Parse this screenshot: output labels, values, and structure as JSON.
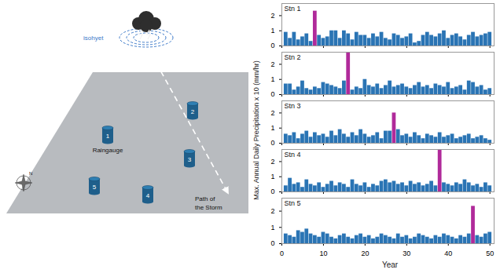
{
  "diagram": {
    "isohyet": "isohyet",
    "raingauge": "Raingauge",
    "north": "N",
    "storm_path": [
      "Path of",
      "the Storm"
    ],
    "gauges": [
      "1",
      "2",
      "3",
      "4",
      "5"
    ]
  },
  "axis_labels": {
    "y": "Max. Annual Daily Precipitation x 10 (mm/hr)",
    "x": "Year"
  },
  "chart_data": [
    {
      "type": "bar",
      "title": "Stn 1",
      "tick_labels": "y",
      "x": [
        1,
        2,
        3,
        4,
        5,
        6,
        7,
        8,
        9,
        10,
        11,
        12,
        13,
        14,
        15,
        16,
        17,
        18,
        19,
        20,
        21,
        22,
        23,
        24,
        25,
        26,
        27,
        28,
        29,
        30,
        31,
        32,
        33,
        34,
        35,
        36,
        37,
        38,
        39,
        40,
        41,
        42,
        43,
        44,
        45,
        46,
        47,
        48,
        49,
        50
      ],
      "values": [
        0.9,
        0.5,
        0.9,
        0.4,
        0.6,
        0.8,
        0.3,
        2.3,
        0.7,
        0.5,
        0.6,
        1.0,
        1.0,
        0.5,
        1.0,
        0.8,
        0.4,
        0.9,
        0.7,
        0.7,
        0.5,
        0.8,
        0.6,
        0.9,
        0.5,
        0.4,
        0.8,
        0.7,
        0.5,
        0.6,
        0.8,
        0.2,
        0.3,
        0.7,
        0.9,
        0.7,
        0.6,
        0.8,
        1.0,
        0.5,
        0.7,
        0.8,
        0.6,
        0.4,
        0.7,
        0.9,
        0.6,
        0.7,
        0.8,
        0.9
      ],
      "colors": [
        "#2a74b4",
        "#2a74b4",
        "#2a74b4",
        "#2a74b4",
        "#2a74b4",
        "#2a74b4",
        "#2a74b4",
        "#b02a9a",
        "#2a74b4",
        "#2a74b4",
        "#2a74b4",
        "#2a74b4",
        "#2a74b4",
        "#2a74b4",
        "#2a74b4",
        "#2a74b4",
        "#2a74b4",
        "#2a74b4",
        "#2a74b4",
        "#2a74b4",
        "#2a74b4",
        "#2a74b4",
        "#2a74b4",
        "#2a74b4",
        "#2a74b4",
        "#2a74b4",
        "#2a74b4",
        "#2a74b4",
        "#2a74b4",
        "#2a74b4",
        "#2a74b4",
        "#2a74b4",
        "#2a74b4",
        "#2a74b4",
        "#2a74b4",
        "#2a74b4",
        "#2a74b4",
        "#2a74b4",
        "#2a74b4",
        "#2a74b4",
        "#2a74b4",
        "#2a74b4",
        "#2a74b4",
        "#2a74b4",
        "#2a74b4",
        "#2a74b4",
        "#2a74b4",
        "#2a74b4",
        "#2a74b4",
        "#2a74b4"
      ],
      "xlim": [
        0,
        51
      ],
      "xticks": [
        0,
        10,
        20,
        30,
        40,
        50
      ],
      "ylim": [
        0,
        2.8
      ],
      "yticks": [
        0,
        1,
        2
      ]
    },
    {
      "type": "bar",
      "title": "Stn 2",
      "tick_labels": "y",
      "x": [
        1,
        2,
        3,
        4,
        5,
        6,
        7,
        8,
        9,
        10,
        11,
        12,
        13,
        14,
        15,
        16,
        17,
        18,
        19,
        20,
        21,
        22,
        23,
        24,
        25,
        26,
        27,
        28,
        29,
        30,
        31,
        32,
        33,
        34,
        35,
        36,
        37,
        38,
        39,
        40,
        41,
        42,
        43,
        44,
        45,
        46,
        47,
        48,
        49,
        50
      ],
      "values": [
        0.7,
        0.7,
        0.3,
        0.5,
        0.9,
        0.4,
        0.3,
        0.5,
        0.4,
        0.8,
        0.7,
        0.6,
        0.5,
        0.4,
        0.9,
        2.8,
        0.3,
        0.5,
        0.4,
        1.0,
        0.6,
        0.5,
        0.7,
        0.4,
        0.6,
        0.9,
        0.5,
        0.6,
        0.7,
        0.5,
        0.4,
        0.6,
        0.8,
        0.5,
        0.6,
        0.4,
        0.7,
        0.6,
        0.5,
        0.8,
        0.4,
        0.5,
        0.6,
        0.3,
        0.9,
        0.8,
        0.5,
        0.6,
        0.3,
        0.4
      ],
      "colors": [
        "#2a74b4",
        "#2a74b4",
        "#2a74b4",
        "#2a74b4",
        "#2a74b4",
        "#2a74b4",
        "#2a74b4",
        "#2a74b4",
        "#2a74b4",
        "#2a74b4",
        "#2a74b4",
        "#2a74b4",
        "#2a74b4",
        "#2a74b4",
        "#2a74b4",
        "#b02a9a",
        "#2a74b4",
        "#2a74b4",
        "#2a74b4",
        "#2a74b4",
        "#2a74b4",
        "#2a74b4",
        "#2a74b4",
        "#2a74b4",
        "#2a74b4",
        "#2a74b4",
        "#2a74b4",
        "#2a74b4",
        "#2a74b4",
        "#2a74b4",
        "#2a74b4",
        "#2a74b4",
        "#2a74b4",
        "#2a74b4",
        "#2a74b4",
        "#2a74b4",
        "#2a74b4",
        "#2a74b4",
        "#2a74b4",
        "#2a74b4",
        "#2a74b4",
        "#2a74b4",
        "#2a74b4",
        "#2a74b4",
        "#2a74b4",
        "#2a74b4",
        "#2a74b4",
        "#2a74b4",
        "#2a74b4",
        "#2a74b4"
      ],
      "xlim": [
        0,
        51
      ],
      "xticks": [
        0,
        10,
        20,
        30,
        40,
        50
      ],
      "ylim": [
        0,
        2.8
      ],
      "yticks": [
        0,
        1,
        2
      ]
    },
    {
      "type": "bar",
      "title": "Stn 3",
      "tick_labels": "y",
      "x": [
        1,
        2,
        3,
        4,
        5,
        6,
        7,
        8,
        9,
        10,
        11,
        12,
        13,
        14,
        15,
        16,
        17,
        18,
        19,
        20,
        21,
        22,
        23,
        24,
        25,
        26,
        27,
        28,
        29,
        30,
        31,
        32,
        33,
        34,
        35,
        36,
        37,
        38,
        39,
        40,
        41,
        42,
        43,
        44,
        45,
        46,
        47,
        48,
        49,
        50
      ],
      "values": [
        0.6,
        0.5,
        0.7,
        0.3,
        0.6,
        0.8,
        0.4,
        0.7,
        0.5,
        0.6,
        0.4,
        0.8,
        0.5,
        0.9,
        0.6,
        0.4,
        0.7,
        0.5,
        0.9,
        0.6,
        0.4,
        0.5,
        0.7,
        0.3,
        0.8,
        0.8,
        2.0,
        0.9,
        0.5,
        0.6,
        0.4,
        0.7,
        0.5,
        0.3,
        0.6,
        0.5,
        0.4,
        0.7,
        0.4,
        0.5,
        0.6,
        0.3,
        0.4,
        0.5,
        0.6,
        0.3,
        0.4,
        0.5,
        0.3,
        0.2
      ],
      "colors": [
        "#2a74b4",
        "#2a74b4",
        "#2a74b4",
        "#2a74b4",
        "#2a74b4",
        "#2a74b4",
        "#2a74b4",
        "#2a74b4",
        "#2a74b4",
        "#2a74b4",
        "#2a74b4",
        "#2a74b4",
        "#2a74b4",
        "#2a74b4",
        "#2a74b4",
        "#2a74b4",
        "#2a74b4",
        "#2a74b4",
        "#2a74b4",
        "#2a74b4",
        "#2a74b4",
        "#2a74b4",
        "#2a74b4",
        "#2a74b4",
        "#2a74b4",
        "#2a74b4",
        "#b02a9a",
        "#2a74b4",
        "#2a74b4",
        "#2a74b4",
        "#2a74b4",
        "#2a74b4",
        "#2a74b4",
        "#2a74b4",
        "#2a74b4",
        "#2a74b4",
        "#2a74b4",
        "#2a74b4",
        "#2a74b4",
        "#2a74b4",
        "#2a74b4",
        "#2a74b4",
        "#2a74b4",
        "#2a74b4",
        "#2a74b4",
        "#2a74b4",
        "#2a74b4",
        "#2a74b4",
        "#2a74b4",
        "#2a74b4"
      ],
      "xlim": [
        0,
        51
      ],
      "xticks": [
        0,
        10,
        20,
        30,
        40,
        50
      ],
      "ylim": [
        0,
        2.8
      ],
      "yticks": [
        0,
        1,
        2
      ]
    },
    {
      "type": "bar",
      "title": "Stn 4",
      "tick_labels": "y",
      "x": [
        1,
        2,
        3,
        4,
        5,
        6,
        7,
        8,
        9,
        10,
        11,
        12,
        13,
        14,
        15,
        16,
        17,
        18,
        19,
        20,
        21,
        22,
        23,
        24,
        25,
        26,
        27,
        28,
        29,
        30,
        31,
        32,
        33,
        34,
        35,
        36,
        37,
        38,
        39,
        40,
        41,
        42,
        43,
        44,
        45,
        46,
        47,
        48,
        49,
        50
      ],
      "values": [
        0.4,
        0.9,
        0.5,
        0.6,
        0.3,
        0.8,
        0.5,
        0.4,
        0.6,
        0.3,
        0.5,
        0.7,
        0.4,
        0.6,
        0.5,
        0.3,
        0.8,
        0.5,
        0.4,
        0.6,
        0.3,
        0.5,
        0.4,
        0.7,
        0.8,
        0.6,
        0.7,
        0.5,
        0.6,
        0.4,
        0.7,
        0.5,
        0.6,
        0.4,
        0.5,
        0.7,
        0.4,
        2.8,
        0.6,
        0.5,
        0.4,
        0.6,
        0.5,
        0.8,
        0.6,
        0.4,
        0.5,
        0.3,
        0.6,
        0.4
      ],
      "colors": [
        "#2a74b4",
        "#2a74b4",
        "#2a74b4",
        "#2a74b4",
        "#2a74b4",
        "#2a74b4",
        "#2a74b4",
        "#2a74b4",
        "#2a74b4",
        "#2a74b4",
        "#2a74b4",
        "#2a74b4",
        "#2a74b4",
        "#2a74b4",
        "#2a74b4",
        "#2a74b4",
        "#2a74b4",
        "#2a74b4",
        "#2a74b4",
        "#2a74b4",
        "#2a74b4",
        "#2a74b4",
        "#2a74b4",
        "#2a74b4",
        "#2a74b4",
        "#2a74b4",
        "#2a74b4",
        "#2a74b4",
        "#2a74b4",
        "#2a74b4",
        "#2a74b4",
        "#2a74b4",
        "#2a74b4",
        "#2a74b4",
        "#2a74b4",
        "#2a74b4",
        "#2a74b4",
        "#b02a9a",
        "#2a74b4",
        "#2a74b4",
        "#2a74b4",
        "#2a74b4",
        "#2a74b4",
        "#2a74b4",
        "#2a74b4",
        "#2a74b4",
        "#2a74b4",
        "#2a74b4",
        "#2a74b4",
        "#2a74b4"
      ],
      "xlim": [
        0,
        51
      ],
      "xticks": [
        0,
        10,
        20,
        30,
        40,
        50
      ],
      "ylim": [
        0,
        2.8
      ],
      "yticks": [
        0,
        1,
        2
      ]
    },
    {
      "type": "bar",
      "title": "Stn 5",
      "x": [
        1,
        2,
        3,
        4,
        5,
        6,
        7,
        8,
        9,
        10,
        11,
        12,
        13,
        14,
        15,
        16,
        17,
        18,
        19,
        20,
        21,
        22,
        23,
        24,
        25,
        26,
        27,
        28,
        29,
        30,
        31,
        32,
        33,
        34,
        35,
        36,
        37,
        38,
        39,
        40,
        41,
        42,
        43,
        44,
        45,
        46,
        47,
        48,
        49,
        50
      ],
      "values": [
        0.6,
        0.5,
        0.4,
        0.8,
        0.7,
        0.9,
        0.6,
        0.5,
        0.4,
        0.7,
        0.6,
        0.4,
        0.3,
        0.5,
        0.6,
        0.4,
        0.3,
        0.5,
        0.6,
        0.4,
        0.5,
        0.3,
        0.4,
        0.6,
        0.5,
        0.4,
        0.3,
        0.6,
        0.4,
        0.5,
        0.3,
        0.4,
        0.6,
        0.5,
        0.4,
        0.3,
        0.5,
        0.4,
        0.6,
        0.5,
        0.4,
        0.3,
        0.5,
        0.4,
        0.6,
        2.3,
        0.5,
        0.4,
        0.6,
        0.7
      ],
      "colors": [
        "#2a74b4",
        "#2a74b4",
        "#2a74b4",
        "#2a74b4",
        "#2a74b4",
        "#2a74b4",
        "#2a74b4",
        "#2a74b4",
        "#2a74b4",
        "#2a74b4",
        "#2a74b4",
        "#2a74b4",
        "#2a74b4",
        "#2a74b4",
        "#2a74b4",
        "#2a74b4",
        "#2a74b4",
        "#2a74b4",
        "#2a74b4",
        "#2a74b4",
        "#2a74b4",
        "#2a74b4",
        "#2a74b4",
        "#2a74b4",
        "#2a74b4",
        "#2a74b4",
        "#2a74b4",
        "#2a74b4",
        "#2a74b4",
        "#2a74b4",
        "#2a74b4",
        "#2a74b4",
        "#2a74b4",
        "#2a74b4",
        "#2a74b4",
        "#2a74b4",
        "#2a74b4",
        "#2a74b4",
        "#2a74b4",
        "#2a74b4",
        "#2a74b4",
        "#2a74b4",
        "#2a74b4",
        "#2a74b4",
        "#2a74b4",
        "#b02a9a",
        "#2a74b4",
        "#2a74b4",
        "#2a74b4",
        "#2a74b4"
      ],
      "xlim": [
        0,
        51
      ],
      "xticks": [
        0,
        10,
        20,
        30,
        40,
        50
      ],
      "ylim": [
        0,
        2.8
      ],
      "yticks": [
        0,
        1,
        2
      ]
    }
  ]
}
